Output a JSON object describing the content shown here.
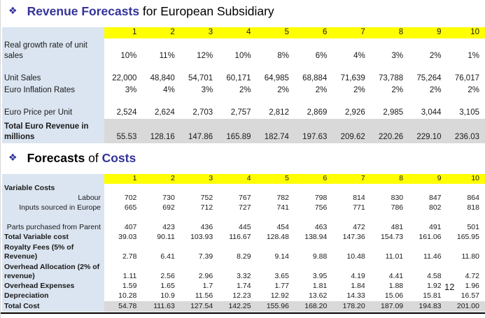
{
  "slide": {
    "page_number": "12",
    "colors": {
      "accent_blue": "#333399",
      "header_yellow": "#ffff00",
      "label_lavender": "#dbe5f1",
      "total_gray": "#d9d9d9"
    }
  },
  "title1": {
    "bullet": "❖",
    "highlight": "Revenue Forecasts",
    "rest": " for European Subsidiary"
  },
  "title2": {
    "bullet": "❖",
    "pre": "Forecasts",
    "mid": " of ",
    "highlight": "Costs"
  },
  "revenue_table": {
    "columns": [
      "1",
      "2",
      "3",
      "4",
      "5",
      "6",
      "7",
      "8",
      "9",
      "10"
    ],
    "rows": [
      {
        "label": "Real growth rate of unit sales",
        "style": "two",
        "values": [
          "10%",
          "11%",
          "12%",
          "10%",
          "8%",
          "6%",
          "4%",
          "3%",
          "2%",
          "1%"
        ]
      },
      {
        "label": "",
        "style": "spacer",
        "values": []
      },
      {
        "label": "Unit Sales",
        "values": [
          "22,000",
          "48,840",
          "54,701",
          "60,171",
          "64,985",
          "68,884",
          "71,639",
          "73,788",
          "75,264",
          "76,017"
        ]
      },
      {
        "label": "Euro Inflation Rates",
        "values": [
          "3%",
          "4%",
          "3%",
          "2%",
          "2%",
          "2%",
          "2%",
          "2%",
          "2%",
          "2%"
        ]
      },
      {
        "label": "",
        "style": "spacer",
        "values": []
      },
      {
        "label": "Euro Price per Unit",
        "values": [
          "2,524",
          "2,624",
          "2,703",
          "2,757",
          "2,812",
          "2,869",
          "2,926",
          "2,985",
          "3,044",
          "3,105"
        ]
      },
      {
        "label": "Total Euro Revenue in millions",
        "bold": true,
        "style": "total",
        "values": [
          "55.53",
          "128.16",
          "147.86",
          "165.89",
          "182.74",
          "197.63",
          "209.62",
          "220.26",
          "229.10",
          "236.03"
        ]
      }
    ]
  },
  "costs_table": {
    "columns": [
      "1",
      "2",
      "3",
      "4",
      "5",
      "6",
      "7",
      "8",
      "9",
      "10"
    ],
    "rows": [
      {
        "label": "Variable Costs",
        "bold": true,
        "values": []
      },
      {
        "label": "Labour",
        "labelRight": true,
        "values": [
          "702",
          "730",
          "752",
          "767",
          "782",
          "798",
          "814",
          "830",
          "847",
          "864"
        ]
      },
      {
        "label": "Inputs sourced in Europe",
        "labelRight": true,
        "values": [
          "665",
          "692",
          "712",
          "727",
          "741",
          "756",
          "771",
          "786",
          "802",
          "818"
        ]
      },
      {
        "label": "Parts purchased from Parent",
        "labelRight": true,
        "style": "two",
        "values": [
          "407",
          "423",
          "436",
          "445",
          "454",
          "463",
          "472",
          "481",
          "491",
          "501"
        ]
      },
      {
        "label": "Total Variable cost",
        "bold": true,
        "values": [
          "39.03",
          "90.11",
          "103.93",
          "116.67",
          "128.48",
          "138.94",
          "147.36",
          "154.73",
          "161.06",
          "165.95"
        ]
      },
      {
        "label": "Royalty  Fees (5% of Revenue)",
        "bold": true,
        "style": "two",
        "values": [
          "2.78",
          "6.41",
          "7.39",
          "8.29",
          "9.14",
          "9.88",
          "10.48",
          "11.01",
          "11.46",
          "11.80"
        ]
      },
      {
        "label": "Overhead Allocation (2% of revenue)",
        "bold": true,
        "style": "two",
        "values": [
          "1.11",
          "2.56",
          "2.96",
          "3.32",
          "3.65",
          "3.95",
          "4.19",
          "4.41",
          "4.58",
          "4.72"
        ]
      },
      {
        "label": "Overhead Expenses",
        "bold": true,
        "values": [
          "1.59",
          "1.65",
          "1.7",
          "1.74",
          "1.77",
          "1.81",
          "1.84",
          "1.88",
          "1.92",
          "1.96"
        ]
      },
      {
        "label": "Depreciation",
        "bold": true,
        "values": [
          "10.28",
          "10.9",
          "11.56",
          "12.23",
          "12.92",
          "13.62",
          "14.33",
          "15.06",
          "15.81",
          "16.57"
        ]
      },
      {
        "label": "Total Cost",
        "bold": true,
        "style": "total",
        "values": [
          "54.78",
          "111.63",
          "127.54",
          "142.25",
          "155.96",
          "168.20",
          "178.20",
          "187.09",
          "194.83",
          "201.00"
        ]
      }
    ]
  }
}
